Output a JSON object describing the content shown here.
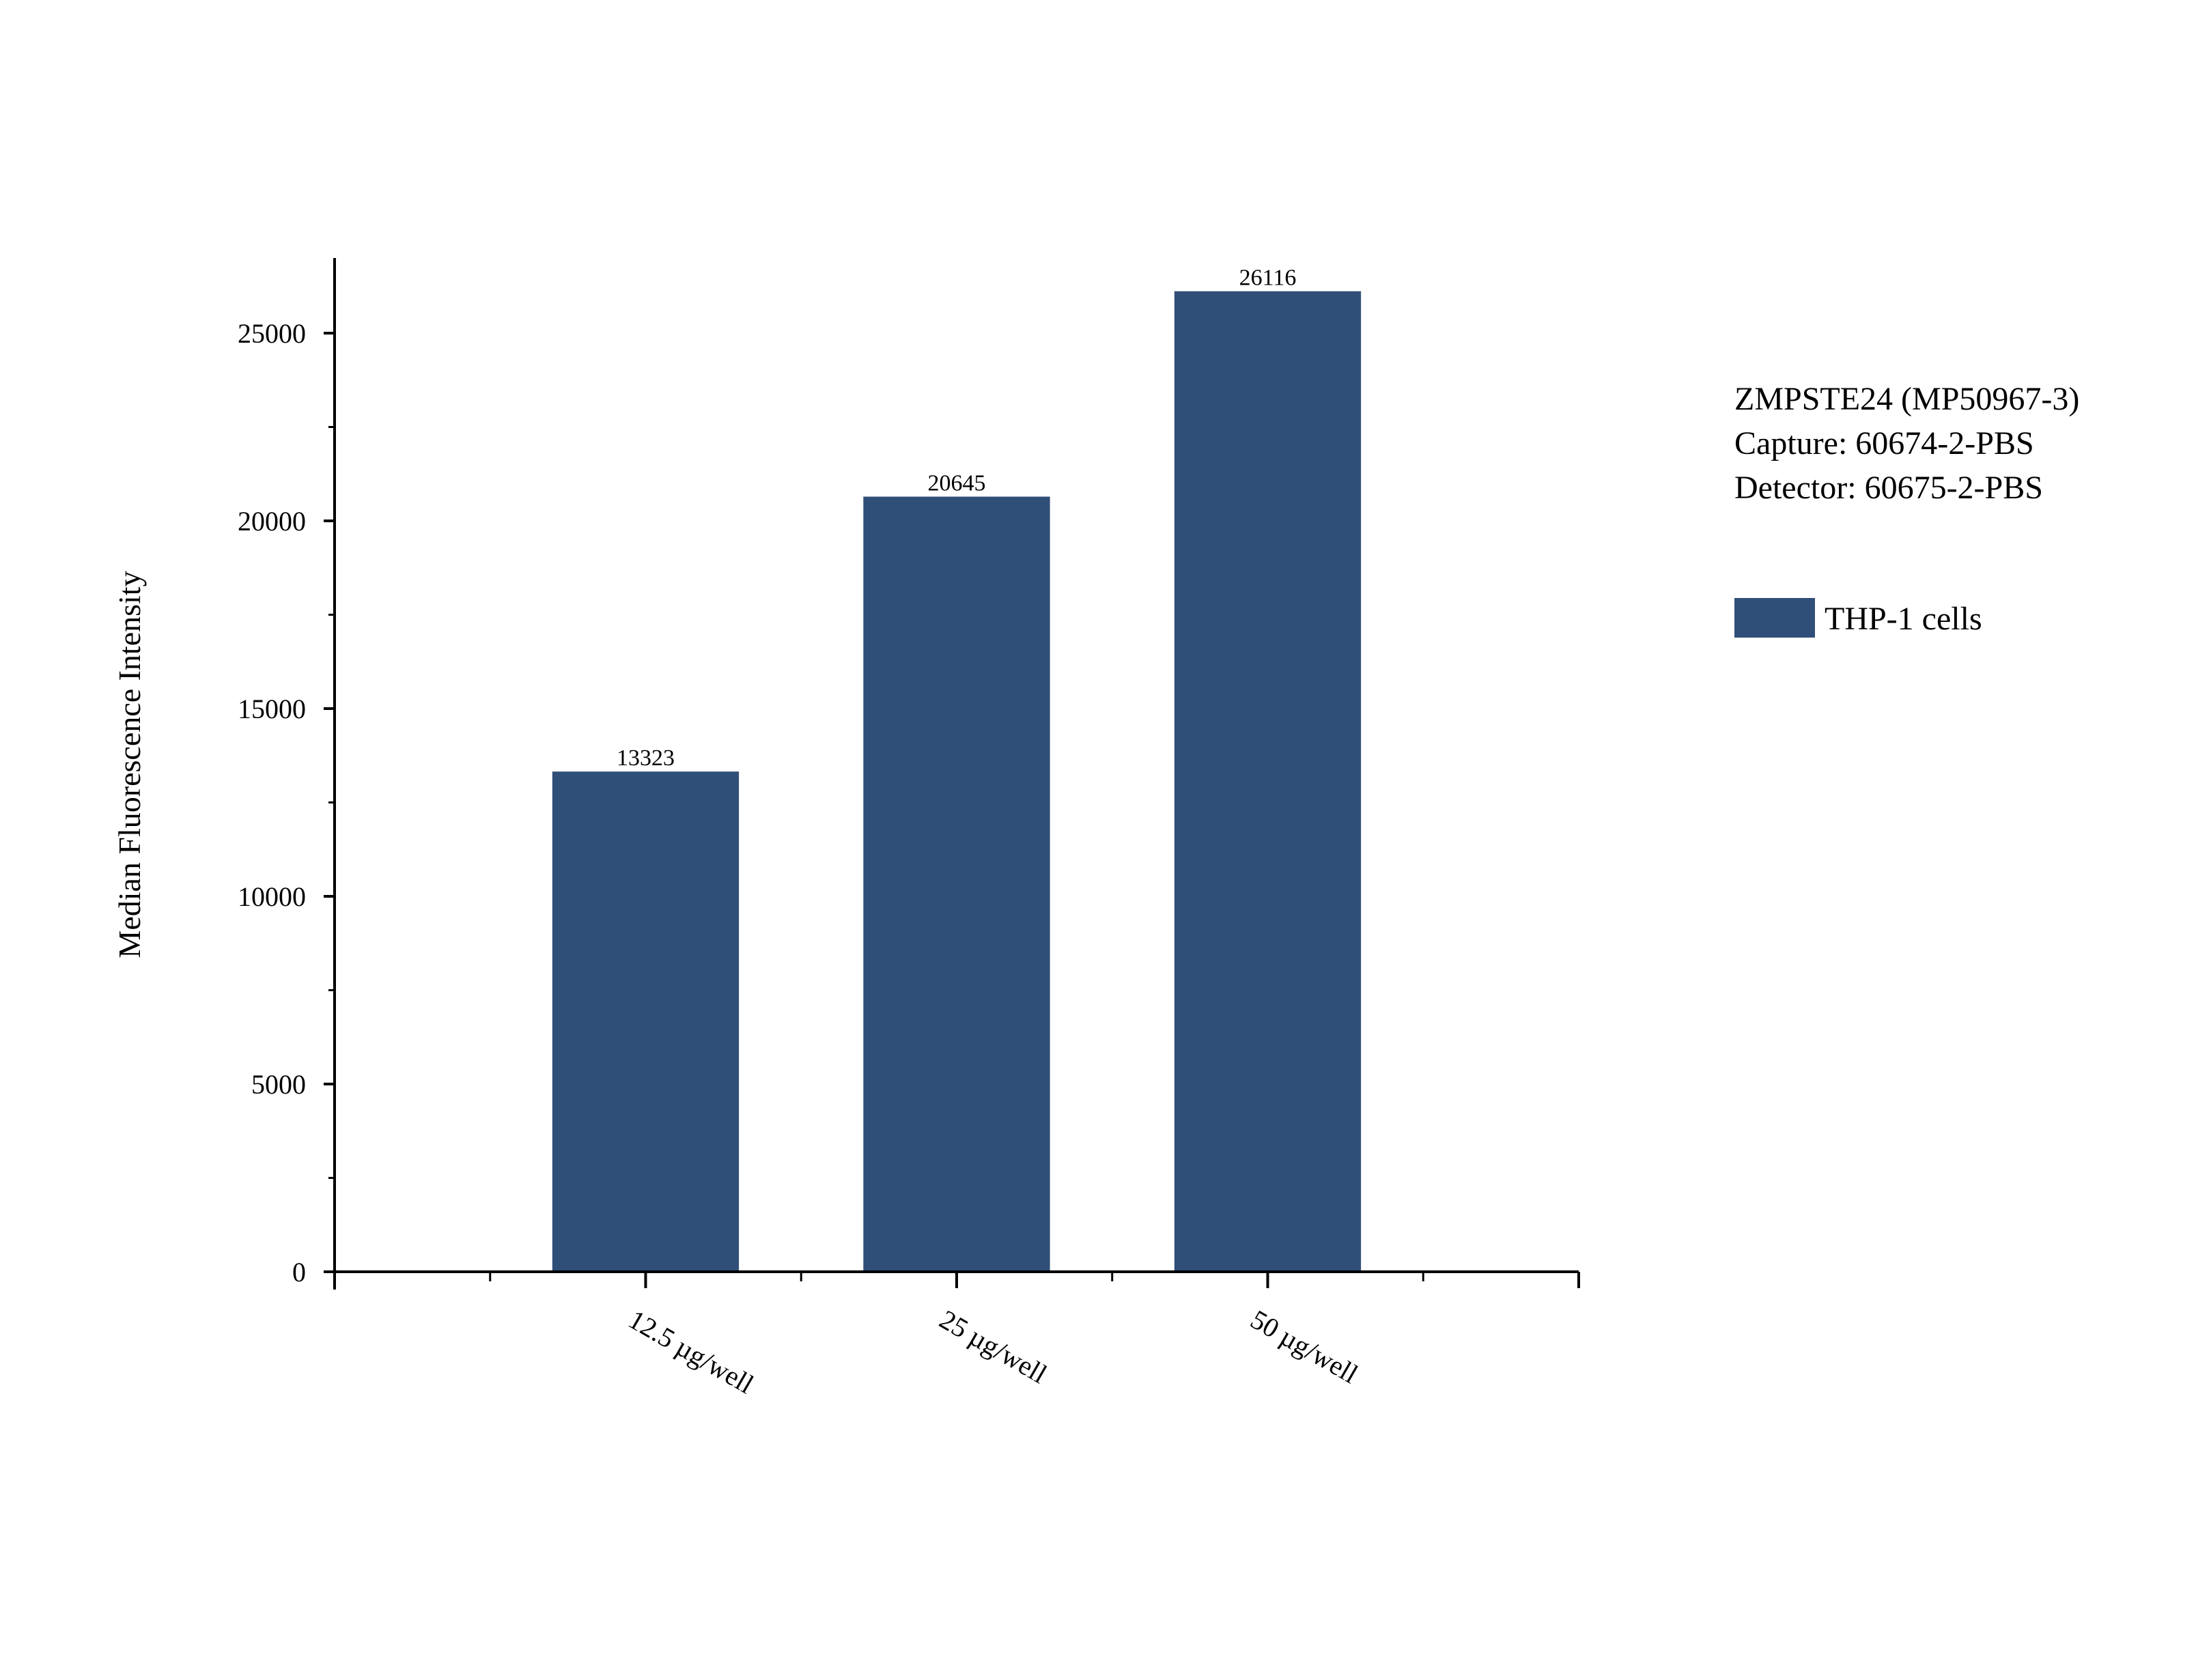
{
  "chart_data": {
    "type": "bar",
    "title": "",
    "xlabel": "",
    "ylabel": "Median Fluorescence Intensity",
    "categories": [
      "12.5 µg/well",
      "25 µg/well",
      "50 µg/well"
    ],
    "series": [
      {
        "name": "THP-1 cells",
        "values": [
          13323,
          20645,
          26116
        ],
        "color": "#304f78"
      }
    ],
    "data_labels": [
      "13323",
      "20645",
      "26116"
    ],
    "ylim": [
      0,
      27000
    ],
    "yticks": [
      0,
      5000,
      10000,
      15000,
      20000,
      25000
    ],
    "ytick_labels": [
      "0",
      "5000",
      "10000",
      "15000",
      "20000",
      "25000"
    ],
    "grid": false,
    "legend_position": "right",
    "annotation": [
      "ZMPSTE24 (MP50967-3)",
      "Capture: 60674-2-PBS",
      "Detector: 60675-2-PBS"
    ]
  }
}
